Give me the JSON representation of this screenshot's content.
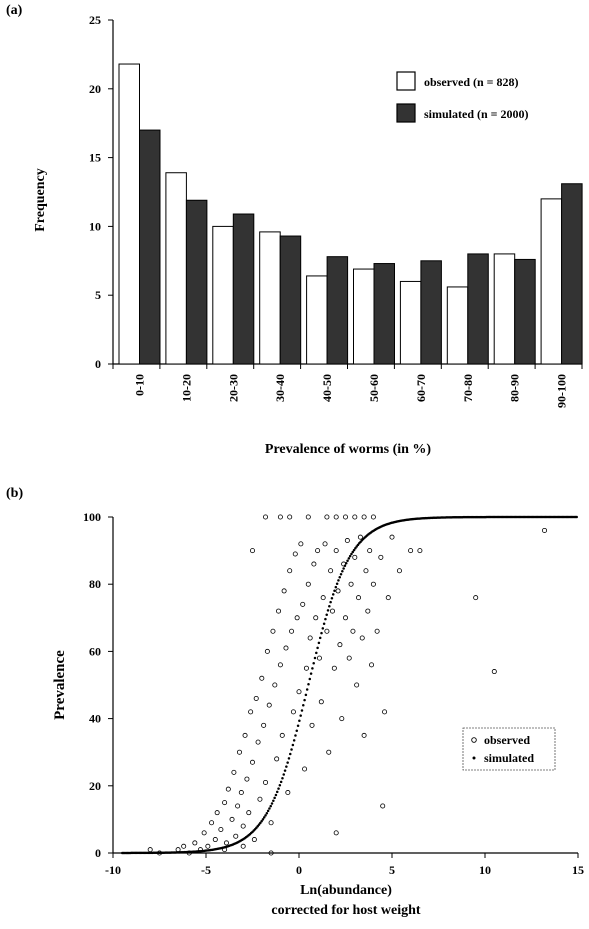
{
  "chart_data": [
    {
      "panel_label": "(a)",
      "type": "bar",
      "xlabel": "Prevalence of worms (in %)",
      "ylabel": "Frequency",
      "ylim": [
        0,
        25
      ],
      "yticks": [
        0,
        5,
        10,
        15,
        20,
        25
      ],
      "categories": [
        "0-10",
        "10-20",
        "20-30",
        "30-40",
        "40-50",
        "50-60",
        "60-70",
        "70-80",
        "80-90",
        "90-100"
      ],
      "series": [
        {
          "name": "observed (n = 828)",
          "color": "#ffffff",
          "values": [
            21.8,
            13.9,
            10.0,
            9.6,
            6.4,
            6.9,
            6.0,
            5.6,
            8.0,
            12.0
          ]
        },
        {
          "name": "simulated (n = 2000)",
          "color": "#333333",
          "values": [
            17.0,
            11.9,
            10.9,
            9.3,
            7.8,
            7.3,
            7.5,
            8.0,
            7.6,
            13.1
          ]
        }
      ],
      "legend_position": "top-right"
    },
    {
      "panel_label": "(b)",
      "type": "scatter",
      "xlabel": "Ln(abundance)",
      "xlabel2": "corrected for host weight",
      "ylabel": "Prevalence",
      "xlim": [
        -10,
        15
      ],
      "ylim": [
        0,
        100
      ],
      "xticks": [
        -10,
        -5,
        0,
        5,
        10,
        15
      ],
      "yticks": [
        0,
        20,
        40,
        60,
        80,
        100
      ],
      "series": [
        {
          "name": "observed",
          "marker": "open-circle",
          "points": [
            [
              -6.5,
              1
            ],
            [
              -6.2,
              2
            ],
            [
              -5.9,
              0
            ],
            [
              -5.6,
              3
            ],
            [
              -5.3,
              1
            ],
            [
              -5.1,
              6
            ],
            [
              -4.9,
              2
            ],
            [
              -4.7,
              9
            ],
            [
              -4.5,
              4
            ],
            [
              -4.4,
              12
            ],
            [
              -4.2,
              7
            ],
            [
              -4.0,
              15
            ],
            [
              -3.9,
              3
            ],
            [
              -3.8,
              19
            ],
            [
              -3.6,
              10
            ],
            [
              -3.5,
              24
            ],
            [
              -3.4,
              5
            ],
            [
              -3.3,
              14
            ],
            [
              -3.2,
              30
            ],
            [
              -3.1,
              18
            ],
            [
              -3.0,
              8
            ],
            [
              -2.9,
              35
            ],
            [
              -2.8,
              22
            ],
            [
              -2.7,
              12
            ],
            [
              -2.6,
              42
            ],
            [
              -2.5,
              27
            ],
            [
              -2.4,
              4
            ],
            [
              -2.3,
              46
            ],
            [
              -2.2,
              33
            ],
            [
              -2.1,
              16
            ],
            [
              -2.0,
              52
            ],
            [
              -1.9,
              38
            ],
            [
              -1.8,
              21
            ],
            [
              -1.7,
              60
            ],
            [
              -1.6,
              44
            ],
            [
              -1.5,
              9
            ],
            [
              -1.4,
              66
            ],
            [
              -1.3,
              50
            ],
            [
              -1.2,
              28
            ],
            [
              -1.1,
              72
            ],
            [
              -1.0,
              56
            ],
            [
              -0.9,
              35
            ],
            [
              -0.8,
              78
            ],
            [
              -0.7,
              61
            ],
            [
              -0.6,
              18
            ],
            [
              -0.5,
              84
            ],
            [
              -0.4,
              66
            ],
            [
              -0.3,
              42
            ],
            [
              -0.2,
              89
            ],
            [
              -0.1,
              70
            ],
            [
              0.0,
              48
            ],
            [
              0.1,
              92
            ],
            [
              0.2,
              74
            ],
            [
              0.3,
              25
            ],
            [
              0.4,
              55
            ],
            [
              0.5,
              80
            ],
            [
              0.6,
              64
            ],
            [
              0.7,
              38
            ],
            [
              0.8,
              86
            ],
            [
              0.9,
              70
            ],
            [
              1.0,
              90
            ],
            [
              1.1,
              58
            ],
            [
              1.2,
              45
            ],
            [
              1.3,
              76
            ],
            [
              1.4,
              92
            ],
            [
              1.5,
              66
            ],
            [
              1.6,
              30
            ],
            [
              1.7,
              84
            ],
            [
              1.8,
              72
            ],
            [
              1.9,
              55
            ],
            [
              2.0,
              90
            ],
            [
              2.1,
              78
            ],
            [
              2.2,
              62
            ],
            [
              2.3,
              40
            ],
            [
              2.4,
              86
            ],
            [
              2.5,
              70
            ],
            [
              2.6,
              93
            ],
            [
              2.7,
              58
            ],
            [
              2.8,
              80
            ],
            [
              2.9,
              66
            ],
            [
              3.0,
              88
            ],
            [
              3.1,
              50
            ],
            [
              3.2,
              76
            ],
            [
              3.3,
              94
            ],
            [
              3.4,
              64
            ],
            [
              3.5,
              35
            ],
            [
              3.6,
              84
            ],
            [
              3.7,
              72
            ],
            [
              3.8,
              90
            ],
            [
              3.9,
              56
            ],
            [
              4.0,
              80
            ],
            [
              4.2,
              66
            ],
            [
              4.4,
              88
            ],
            [
              4.6,
              42
            ],
            [
              4.8,
              76
            ],
            [
              5.0,
              94
            ],
            [
              5.4,
              84
            ],
            [
              6.0,
              90
            ],
            [
              6.5,
              90
            ],
            [
              9.5,
              76
            ],
            [
              10.5,
              54
            ],
            [
              13.2,
              96
            ],
            [
              -2.5,
              90
            ],
            [
              -0.5,
              100
            ],
            [
              0.5,
              100
            ],
            [
              1.5,
              100
            ],
            [
              2.0,
              100
            ],
            [
              2.5,
              100
            ],
            [
              3.0,
              100
            ],
            [
              3.5,
              100
            ],
            [
              4.0,
              100
            ],
            [
              -1.0,
              100
            ],
            [
              -1.8,
              100
            ],
            [
              4.5,
              14
            ],
            [
              2.0,
              6
            ],
            [
              -1.5,
              0
            ],
            [
              -3.0,
              2
            ],
            [
              -4.0,
              1
            ],
            [
              -7.5,
              0
            ],
            [
              -8.0,
              1
            ]
          ]
        },
        {
          "name": "simulated",
          "marker": "dot",
          "curve": "logistic",
          "midpoint": 0.5,
          "steepness": 0.9
        }
      ],
      "legend_position": "right"
    }
  ]
}
